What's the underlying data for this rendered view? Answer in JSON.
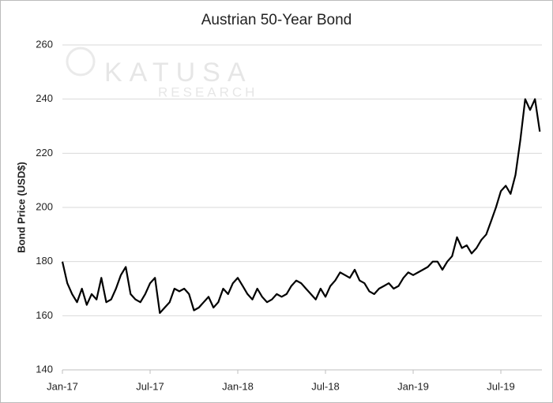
{
  "chart_data": {
    "type": "line",
    "title": "Austrian 50-Year Bond",
    "y_label": "Bond Price (USD$)",
    "watermark": [
      "KATUSA",
      "RESEARCH"
    ],
    "categories": [
      "Jan-17",
      null,
      null,
      null,
      null,
      null,
      null,
      null,
      null,
      null,
      null,
      null,
      null,
      null,
      null,
      null,
      null,
      null,
      "Jul-17",
      null,
      null,
      null,
      null,
      null,
      null,
      null,
      null,
      null,
      null,
      null,
      null,
      null,
      null,
      null,
      null,
      null,
      "Jan-18",
      null,
      null,
      null,
      null,
      null,
      null,
      null,
      null,
      null,
      null,
      null,
      null,
      null,
      null,
      null,
      null,
      null,
      "Jul-18",
      null,
      null,
      null,
      null,
      null,
      null,
      null,
      null,
      null,
      null,
      null,
      null,
      null,
      null,
      null,
      null,
      null,
      "Jan-19",
      null,
      null,
      null,
      null,
      null,
      null,
      null,
      null,
      null,
      null,
      null,
      null,
      null,
      null,
      null,
      null,
      null,
      "Jul-19",
      null,
      null,
      null,
      null,
      null,
      null,
      null,
      null
    ],
    "values": [
      180,
      172,
      168,
      165,
      170,
      164,
      168,
      166,
      174,
      165,
      166,
      170,
      175,
      178,
      168,
      166,
      165,
      168,
      172,
      174,
      161,
      163,
      165,
      170,
      169,
      170,
      168,
      162,
      163,
      165,
      167,
      163,
      165,
      170,
      168,
      172,
      174,
      171,
      168,
      166,
      170,
      167,
      165,
      166,
      168,
      167,
      168,
      171,
      173,
      172,
      170,
      168,
      166,
      170,
      167,
      171,
      173,
      176,
      175,
      174,
      177,
      173,
      172,
      169,
      168,
      170,
      171,
      172,
      170,
      171,
      174,
      176,
      175,
      176,
      177,
      178,
      180,
      180,
      177,
      180,
      182,
      189,
      185,
      186,
      183,
      185,
      188,
      190,
      195,
      200,
      206,
      208,
      205,
      212,
      225,
      240,
      236,
      240,
      228
    ],
    "color": "#000000",
    "ylim": [
      140,
      260
    ],
    "yticks": [
      140,
      160,
      180,
      200,
      220,
      240,
      260
    ],
    "grid": true
  }
}
